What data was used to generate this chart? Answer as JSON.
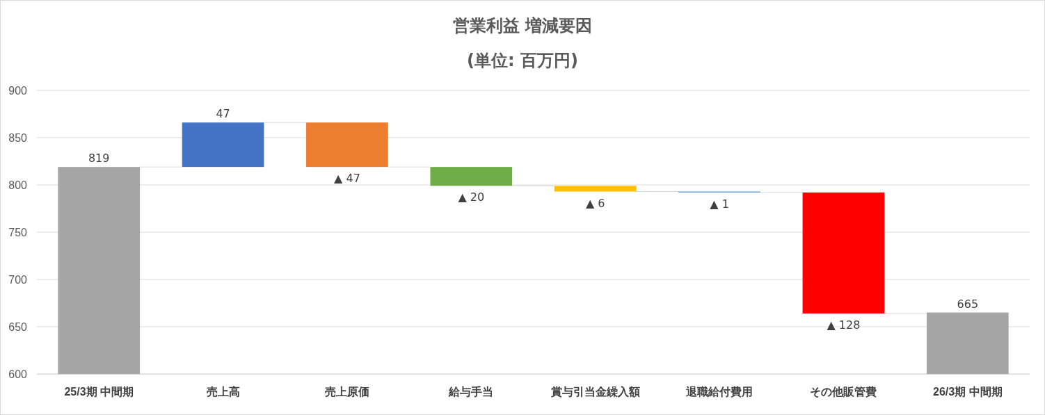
{
  "chart_data": {
    "type": "bar",
    "title": "営業利益 増減要因",
    "subtitle": "(単位: 百万円)",
    "categories": [
      "25/3期 中間期",
      "売上高",
      "売上原価",
      "給与手当",
      "賞与引当金繰入額",
      "退職給付費用",
      "その他販管費",
      "26/3期 中間期"
    ],
    "values": [
      219,
      47,
      -47,
      -20,
      -6,
      -1,
      -128,
      65
    ],
    "base": [
      600,
      819,
      866,
      819,
      799,
      793,
      792,
      600
    ],
    "colors": [
      "#a5a5a5",
      "#4472c4",
      "#ed7d31",
      "#70ad47",
      "#ffc000",
      "#5b9bd5",
      "#ff0000",
      "#a5a5a5"
    ],
    "value_labels": [
      "819",
      "47",
      "▲ 47",
      "▲ 20",
      "▲ 6",
      "▲ 1",
      "▲ 128",
      "665"
    ],
    "ylim": [
      600,
      900
    ],
    "yticks": [
      600,
      650,
      700,
      750,
      800,
      850,
      900
    ],
    "grid": "y"
  }
}
